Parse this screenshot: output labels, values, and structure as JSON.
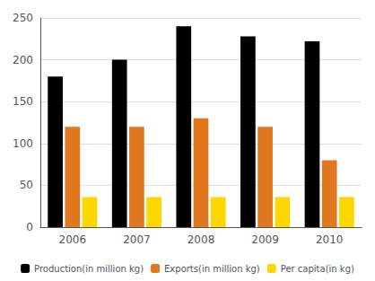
{
  "chart_data": {
    "type": "bar",
    "categories": [
      "2006",
      "2007",
      "2008",
      "2009",
      "2010"
    ],
    "series": [
      {
        "name": "Production(in million kg)",
        "color": "#000000",
        "values": [
          180,
          200,
          240,
          228,
          222
        ]
      },
      {
        "name": "Exports(in million kg)",
        "color": "#E07820",
        "values": [
          120,
          120,
          130,
          120,
          80
        ]
      },
      {
        "name": "Per capita(in kg)",
        "color": "#FFD700",
        "values": [
          36,
          36,
          36,
          36,
          36
        ]
      }
    ],
    "ylim": [
      0,
      250
    ],
    "yticks": [
      0,
      50,
      100,
      150,
      200,
      250
    ],
    "grid": true,
    "legend": "bottom"
  }
}
